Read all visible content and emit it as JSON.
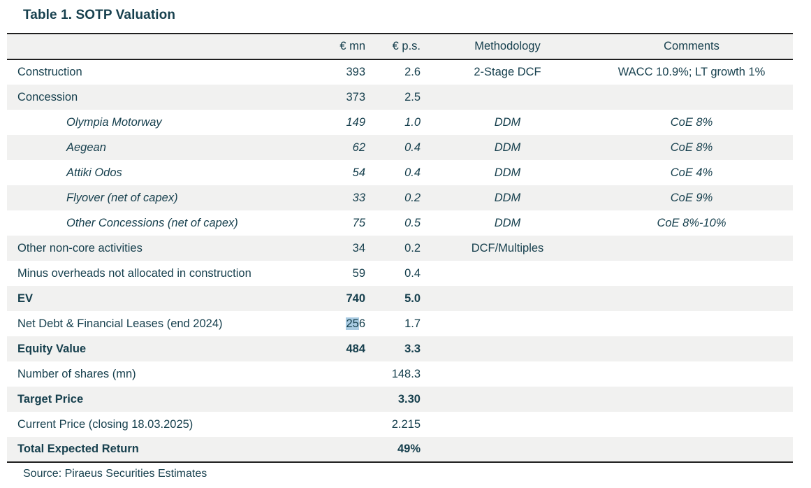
{
  "title": "Table 1. SOTP Valuation",
  "source_note": "Source: Piraeus Securities Estimates",
  "colors": {
    "text": "#17404e",
    "stripe": "#f1f1f0",
    "border": "#1f1f1f",
    "selection": "#a9cbe2",
    "background": "#ffffff"
  },
  "table": {
    "columns": [
      "",
      "€ mn",
      "€ p.s.",
      "Methodology",
      "Comments"
    ],
    "rows": [
      {
        "label": "Construction",
        "eur_mn": "393",
        "eur_ps": "2.6",
        "methodology": "2-Stage DCF",
        "comments": "WACC 10.9%; LT growth 1%",
        "indent": false,
        "italic": false,
        "bold": false
      },
      {
        "label": "Concession",
        "eur_mn": "373",
        "eur_ps": "2.5",
        "methodology": "",
        "comments": "",
        "indent": false,
        "italic": false,
        "bold": false
      },
      {
        "label": "Olympia Motorway",
        "eur_mn": "149",
        "eur_ps": "1.0",
        "methodology": "DDM",
        "comments": "CoE 8%",
        "indent": true,
        "italic": true,
        "bold": false
      },
      {
        "label": "Aegean",
        "eur_mn": "62",
        "eur_ps": "0.4",
        "methodology": "DDM",
        "comments": "CoE 8%",
        "indent": true,
        "italic": true,
        "bold": false
      },
      {
        "label": "Attiki Odos",
        "eur_mn": "54",
        "eur_ps": "0.4",
        "methodology": "DDM",
        "comments": "CoE 4%",
        "indent": true,
        "italic": true,
        "bold": false
      },
      {
        "label": "Flyover (net of capex)",
        "eur_mn": "33",
        "eur_ps": "0.2",
        "methodology": "DDM",
        "comments": "CoE 9%",
        "indent": true,
        "italic": true,
        "bold": false
      },
      {
        "label": "Other Concessions (net of capex)",
        "eur_mn": "75",
        "eur_ps": "0.5",
        "methodology": "DDM",
        "comments": "CoE 8%-10%",
        "indent": true,
        "italic": true,
        "bold": false
      },
      {
        "label": "Other non-core activities",
        "eur_mn": "34",
        "eur_ps": "0.2",
        "methodology": "DCF/Multiples",
        "comments": "",
        "indent": false,
        "italic": false,
        "bold": false
      },
      {
        "label": "Minus overheads not allocated in construction",
        "eur_mn": "59",
        "eur_ps": "0.4",
        "methodology": "",
        "comments": "",
        "indent": false,
        "italic": false,
        "bold": false
      },
      {
        "label": "EV",
        "eur_mn": "740",
        "eur_ps": "5.0",
        "methodology": "",
        "comments": "",
        "indent": false,
        "italic": false,
        "bold": true
      },
      {
        "label": "Net Debt & Financial Leases (end 2024)",
        "eur_mn": "256",
        "eur_ps": "1.7",
        "methodology": "",
        "comments": "",
        "indent": false,
        "italic": false,
        "bold": false,
        "selection": {
          "column": "eur_mn",
          "text": "25"
        }
      },
      {
        "label": "Equity Value",
        "eur_mn": "484",
        "eur_ps": "3.3",
        "methodology": "",
        "comments": "",
        "indent": false,
        "italic": false,
        "bold": true
      },
      {
        "label": "Number of shares (mn)",
        "eur_mn": "",
        "eur_ps": "148.3",
        "methodology": "",
        "comments": "",
        "indent": false,
        "italic": false,
        "bold": false
      },
      {
        "label": "Target Price",
        "eur_mn": "",
        "eur_ps": "3.30",
        "methodology": "",
        "comments": "",
        "indent": false,
        "italic": false,
        "bold": true
      },
      {
        "label": "Current Price (closing 18.03.2025)",
        "eur_mn": "",
        "eur_ps": "2.215",
        "methodology": "",
        "comments": "",
        "indent": false,
        "italic": false,
        "bold": false
      },
      {
        "label": "Total Expected Return",
        "eur_mn": "",
        "eur_ps": "49%",
        "methodology": "",
        "comments": "",
        "indent": false,
        "italic": false,
        "bold": true
      }
    ]
  }
}
